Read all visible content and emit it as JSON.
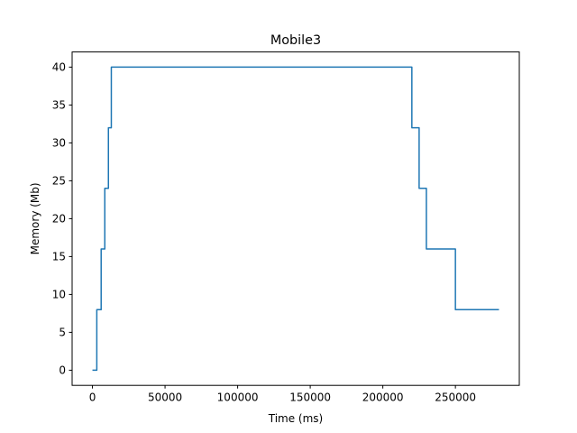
{
  "chart_data": {
    "type": "line",
    "title": "Mobile3",
    "xlabel": "Time (ms)",
    "ylabel": "Memory (Mb)",
    "xlim": [
      -14000,
      294000
    ],
    "ylim": [
      -2,
      42
    ],
    "xticks": [
      0,
      50000,
      100000,
      150000,
      200000,
      250000
    ],
    "yticks": [
      0,
      5,
      10,
      15,
      20,
      25,
      30,
      35,
      40
    ],
    "grid": false,
    "line_style": "step",
    "series": [
      {
        "color": "#1f77b4",
        "points": [
          [
            0,
            0
          ],
          [
            3000,
            0
          ],
          [
            3000,
            8
          ],
          [
            6000,
            8
          ],
          [
            6000,
            16
          ],
          [
            8500,
            16
          ],
          [
            8500,
            24
          ],
          [
            11000,
            24
          ],
          [
            11000,
            32
          ],
          [
            13000,
            32
          ],
          [
            13000,
            40
          ],
          [
            220000,
            40
          ],
          [
            220000,
            32
          ],
          [
            225000,
            32
          ],
          [
            225000,
            24
          ],
          [
            230000,
            24
          ],
          [
            230000,
            16
          ],
          [
            250000,
            16
          ],
          [
            250000,
            8
          ],
          [
            280000,
            8
          ]
        ]
      }
    ]
  }
}
